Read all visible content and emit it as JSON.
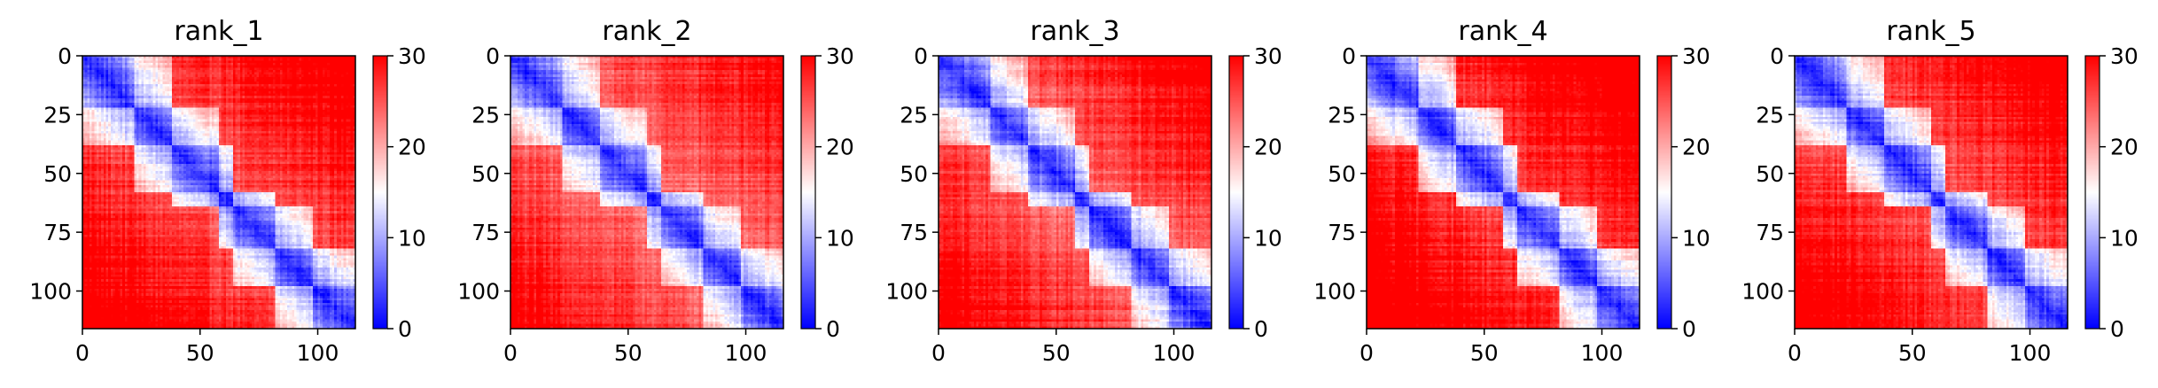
{
  "chart_data": [
    {
      "type": "heatmap",
      "title": "rank_1",
      "xlabel": "",
      "ylabel": "",
      "xlim": [
        0,
        116
      ],
      "ylim": [
        116,
        0
      ],
      "x_ticks": [
        "0",
        "50",
        "100"
      ],
      "y_ticks": [
        "0",
        "25",
        "50",
        "75",
        "100"
      ],
      "colorbar": {
        "range": [
          0,
          30
        ],
        "ticks": [
          "0",
          "10",
          "20",
          "30"
        ],
        "colormap": "bwr"
      },
      "matrix_size": 116,
      "blocks": [
        [
          0,
          22
        ],
        [
          22,
          38
        ],
        [
          38,
          58
        ],
        [
          58,
          64
        ],
        [
          64,
          82
        ],
        [
          82,
          98
        ],
        [
          98,
          116
        ]
      ],
      "diagonal_value": 2,
      "off_block_value": 28
    },
    {
      "type": "heatmap",
      "title": "rank_2",
      "xlabel": "",
      "ylabel": "",
      "xlim": [
        0,
        116
      ],
      "ylim": [
        116,
        0
      ],
      "x_ticks": [
        "0",
        "50",
        "100"
      ],
      "y_ticks": [
        "0",
        "25",
        "50",
        "75",
        "100"
      ],
      "colorbar": {
        "range": [
          0,
          30
        ],
        "ticks": [
          "0",
          "10",
          "20",
          "30"
        ],
        "colormap": "bwr"
      },
      "matrix_size": 116,
      "blocks": [
        [
          0,
          22
        ],
        [
          22,
          38
        ],
        [
          38,
          58
        ],
        [
          58,
          64
        ],
        [
          64,
          82
        ],
        [
          82,
          98
        ],
        [
          98,
          116
        ]
      ],
      "diagonal_value": 2,
      "off_block_value": 26
    },
    {
      "type": "heatmap",
      "title": "rank_3",
      "xlabel": "",
      "ylabel": "",
      "xlim": [
        0,
        116
      ],
      "ylim": [
        116,
        0
      ],
      "x_ticks": [
        "0",
        "50",
        "100"
      ],
      "y_ticks": [
        "0",
        "25",
        "50",
        "75",
        "100"
      ],
      "colorbar": {
        "range": [
          0,
          30
        ],
        "ticks": [
          "0",
          "10",
          "20",
          "30"
        ],
        "colormap": "bwr"
      },
      "matrix_size": 116,
      "blocks": [
        [
          0,
          22
        ],
        [
          22,
          38
        ],
        [
          38,
          58
        ],
        [
          58,
          64
        ],
        [
          64,
          82
        ],
        [
          82,
          98
        ],
        [
          98,
          116
        ]
      ],
      "diagonal_value": 2,
      "off_block_value": 27
    },
    {
      "type": "heatmap",
      "title": "rank_4",
      "xlabel": "",
      "ylabel": "",
      "xlim": [
        0,
        116
      ],
      "ylim": [
        116,
        0
      ],
      "x_ticks": [
        "0",
        "50",
        "100"
      ],
      "y_ticks": [
        "0",
        "25",
        "50",
        "75",
        "100"
      ],
      "colorbar": {
        "range": [
          0,
          30
        ],
        "ticks": [
          "0",
          "10",
          "20",
          "30"
        ],
        "colormap": "bwr"
      },
      "matrix_size": 116,
      "blocks": [
        [
          0,
          22
        ],
        [
          22,
          38
        ],
        [
          38,
          58
        ],
        [
          58,
          64
        ],
        [
          64,
          82
        ],
        [
          82,
          98
        ],
        [
          98,
          116
        ]
      ],
      "diagonal_value": 2,
      "off_block_value": 29
    },
    {
      "type": "heatmap",
      "title": "rank_5",
      "xlabel": "",
      "ylabel": "",
      "xlim": [
        0,
        116
      ],
      "ylim": [
        116,
        0
      ],
      "x_ticks": [
        "0",
        "50",
        "100"
      ],
      "y_ticks": [
        "0",
        "25",
        "50",
        "75",
        "100"
      ],
      "colorbar": {
        "range": [
          0,
          30
        ],
        "ticks": [
          "0",
          "10",
          "20",
          "30"
        ],
        "colormap": "bwr"
      },
      "matrix_size": 116,
      "blocks": [
        [
          0,
          22
        ],
        [
          22,
          38
        ],
        [
          38,
          58
        ],
        [
          58,
          64
        ],
        [
          64,
          82
        ],
        [
          82,
          98
        ],
        [
          98,
          116
        ]
      ],
      "diagonal_value": 2,
      "off_block_value": 28
    }
  ],
  "colors": {
    "low": "#0000ff",
    "mid": "#ffffff",
    "high": "#ff0000"
  }
}
